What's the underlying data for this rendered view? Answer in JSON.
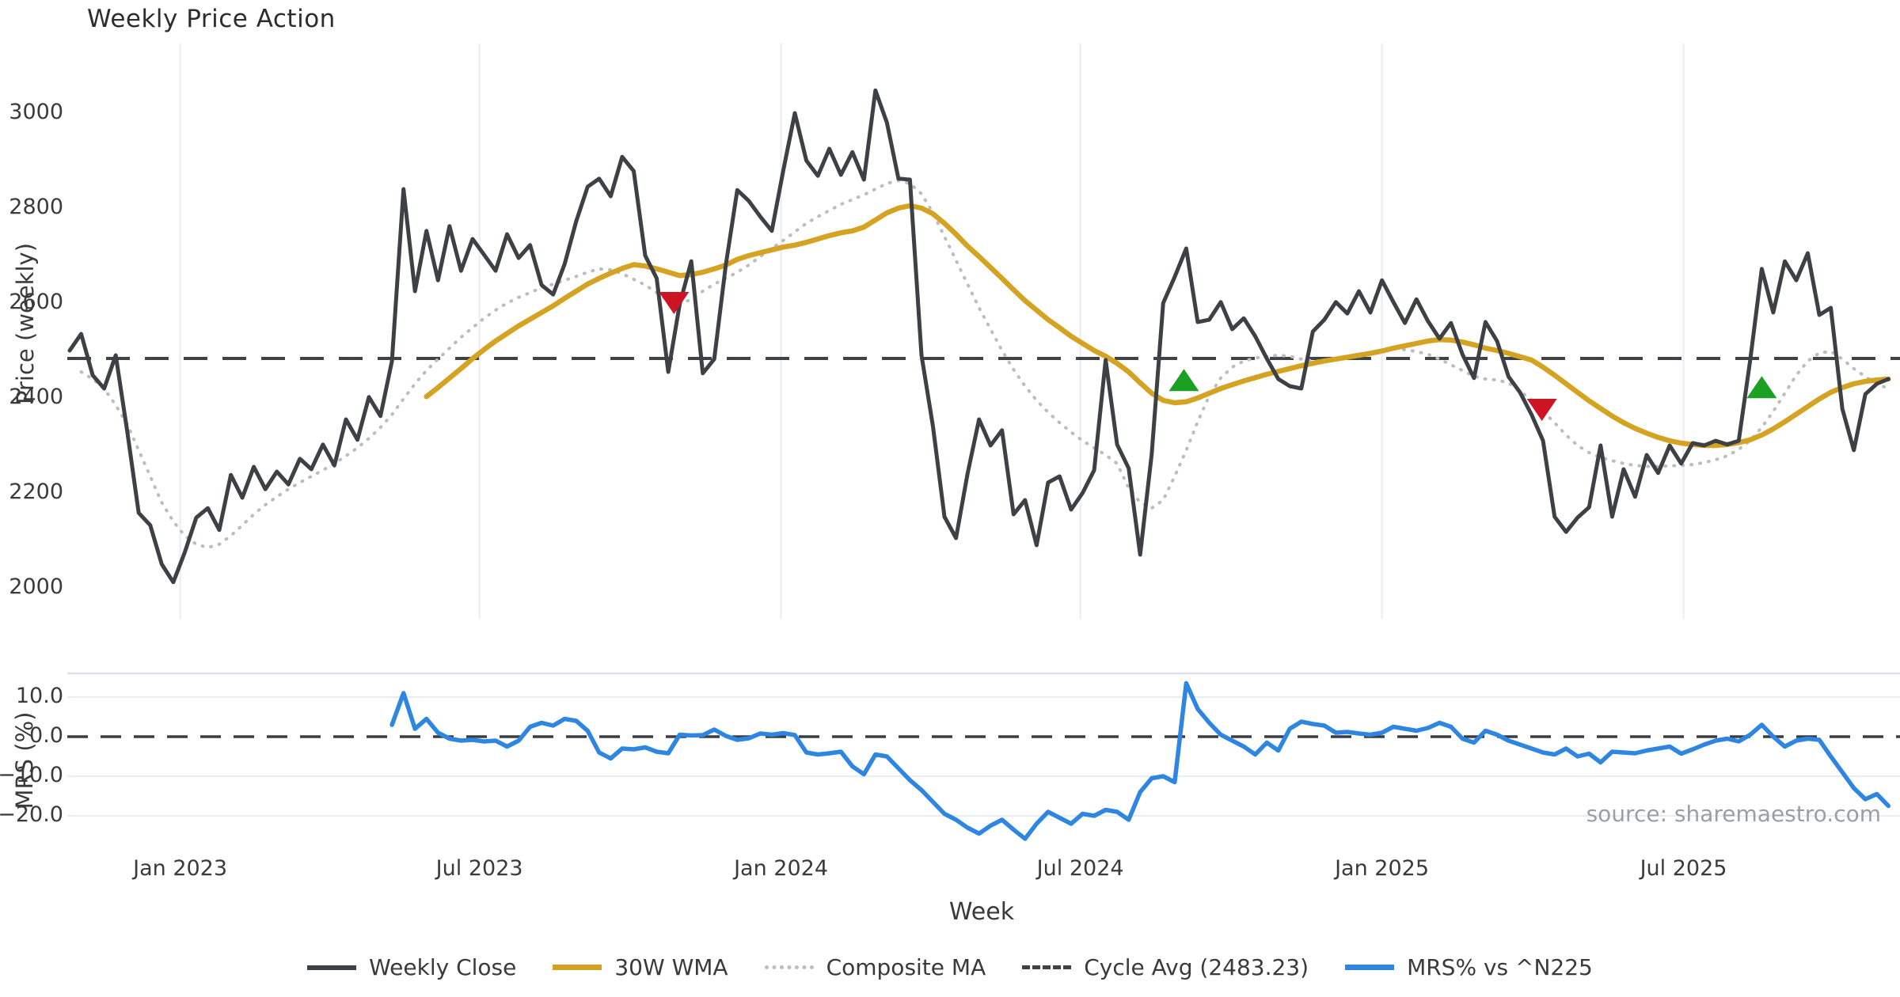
{
  "chart_data": {
    "type": "line",
    "title": "Weekly Price Action",
    "xlabel": "Week",
    "source": "source: sharemaestro.com",
    "grid": "vertical-on-price-panel, horizontal-on-mrs-panel",
    "legend_position": "bottom-center",
    "colors": {
      "close": "#3d4045",
      "wma": "#d4a321",
      "composite": "#bdbdbd",
      "cycle": "#3f4246",
      "mrs": "#2e86e0",
      "buy_marker": "#1ca024",
      "sell_marker": "#cd1425",
      "gridline": "#e9ecf2",
      "panel_spine": "#dde1e8",
      "source_text": "#9b9fa5"
    },
    "legend": [
      {
        "key": "close",
        "label": "Weekly Close"
      },
      {
        "key": "wma",
        "label": "30W WMA"
      },
      {
        "key": "composite",
        "label": "Composite MA"
      },
      {
        "key": "cycle",
        "label": "Cycle Avg (2483.23)"
      },
      {
        "key": "mrs",
        "label": "MRS% vs ^N225"
      }
    ],
    "x_ticks": [
      {
        "label": "Jan 2023",
        "week": 9.6
      },
      {
        "label": "Jul 2023",
        "week": 35.6
      },
      {
        "label": "Jan 2024",
        "week": 61.8
      },
      {
        "label": "Jul 2024",
        "week": 87.8
      },
      {
        "label": "Jan 2025",
        "week": 114.0
      },
      {
        "label": "Jul 2025",
        "week": 140.2
      }
    ],
    "price_panel": {
      "ylabel": "Price (weekly)",
      "yticks": [
        3000,
        2800,
        2600,
        2400,
        2200,
        2000
      ],
      "ylim": [
        1960,
        3140
      ],
      "cycle_avg": 2483.23,
      "series": {
        "close": [
          2500,
          2535,
          2448,
          2420,
          2490,
          2330,
          2158,
          2132,
          2050,
          2012,
          2075,
          2148,
          2168,
          2122,
          2238,
          2190,
          2255,
          2208,
          2245,
          2218,
          2272,
          2250,
          2302,
          2258,
          2355,
          2312,
          2402,
          2362,
          2478,
          2840,
          2625,
          2752,
          2648,
          2762,
          2668,
          2735,
          2702,
          2668,
          2745,
          2695,
          2722,
          2638,
          2618,
          2682,
          2772,
          2845,
          2862,
          2825,
          2908,
          2878,
          2700,
          2652,
          2455,
          2598,
          2688,
          2452,
          2482,
          2680,
          2838,
          2815,
          2782,
          2752,
          2880,
          3000,
          2900,
          2868,
          2925,
          2870,
          2918,
          2860,
          3048,
          2980,
          2862,
          2860,
          2490,
          2340,
          2150,
          2105,
          2240,
          2355,
          2300,
          2332,
          2155,
          2185,
          2090,
          2222,
          2235,
          2165,
          2200,
          2248,
          2480,
          2302,
          2252,
          2070,
          2282,
          2600,
          2655,
          2715,
          2560,
          2565,
          2602,
          2545,
          2568,
          2530,
          2483,
          2440,
          2425,
          2420,
          2540,
          2565,
          2602,
          2578,
          2625,
          2580,
          2648,
          2602,
          2558,
          2608,
          2562,
          2525,
          2558,
          2492,
          2442,
          2560,
          2520,
          2445,
          2412,
          2365,
          2310,
          2150,
          2118,
          2148,
          2170,
          2300,
          2150,
          2250,
          2192,
          2280,
          2242,
          2300,
          2262,
          2305,
          2300,
          2310,
          2302,
          2310,
          2480,
          2672,
          2580,
          2688,
          2648,
          2705,
          2575,
          2590,
          2377,
          2290,
          2408,
          2430,
          2440
        ],
        "wma": [
          null,
          null,
          null,
          null,
          null,
          null,
          null,
          null,
          null,
          null,
          null,
          null,
          null,
          null,
          null,
          null,
          null,
          null,
          null,
          null,
          null,
          null,
          null,
          null,
          null,
          null,
          null,
          null,
          null,
          null,
          null,
          2403,
          2422,
          2442,
          2462,
          2483,
          2502,
          2520,
          2536,
          2552,
          2566,
          2580,
          2594,
          2610,
          2625,
          2640,
          2652,
          2663,
          2673,
          2681,
          2678,
          2672,
          2665,
          2658,
          2660,
          2665,
          2672,
          2680,
          2692,
          2700,
          2706,
          2712,
          2718,
          2722,
          2728,
          2735,
          2742,
          2748,
          2752,
          2760,
          2775,
          2790,
          2800,
          2805,
          2800,
          2788,
          2768,
          2745,
          2720,
          2698,
          2675,
          2652,
          2628,
          2605,
          2585,
          2565,
          2548,
          2530,
          2515,
          2500,
          2488,
          2473,
          2455,
          2432,
          2410,
          2395,
          2390,
          2392,
          2400,
          2410,
          2420,
          2428,
          2436,
          2443,
          2450,
          2456,
          2462,
          2468,
          2473,
          2478,
          2482,
          2486,
          2490,
          2494,
          2499,
          2505,
          2510,
          2515,
          2520,
          2523,
          2522,
          2518,
          2512,
          2505,
          2500,
          2494,
          2487,
          2480,
          2465,
          2448,
          2430,
          2412,
          2394,
          2378,
          2362,
          2348,
          2336,
          2326,
          2317,
          2310,
          2305,
          2302,
          2300,
          2300,
          2302,
          2306,
          2312,
          2322,
          2335,
          2350,
          2366,
          2382,
          2398,
          2412,
          2422,
          2430,
          2435,
          2438,
          2440
        ],
        "composite": [
          null,
          2455,
          2440,
          2420,
          2385,
          2345,
          2290,
          2235,
          2180,
          2140,
          2110,
          2092,
          2085,
          2092,
          2110,
          2132,
          2155,
          2175,
          2192,
          2208,
          2222,
          2235,
          2248,
          2262,
          2278,
          2295,
          2315,
          2338,
          2365,
          2398,
          2430,
          2458,
          2482,
          2505,
          2528,
          2548,
          2568,
          2585,
          2600,
          2612,
          2622,
          2632,
          2640,
          2648,
          2656,
          2665,
          2672,
          2670,
          2662,
          2650,
          2638,
          2622,
          2605,
          2598,
          2608,
          2625,
          2640,
          2652,
          2665,
          2680,
          2698,
          2715,
          2732,
          2750,
          2768,
          2782,
          2795,
          2808,
          2818,
          2828,
          2840,
          2852,
          2858,
          2852,
          2830,
          2790,
          2740,
          2690,
          2640,
          2590,
          2545,
          2500,
          2460,
          2425,
          2395,
          2370,
          2348,
          2328,
          2310,
          2295,
          2280,
          2262,
          2210,
          2180,
          2168,
          2185,
          2235,
          2290,
          2350,
          2405,
          2442,
          2465,
          2478,
          2484,
          2488,
          2490,
          2488,
          2482,
          2478,
          2478,
          2482,
          2487,
          2492,
          2496,
          2500,
          2504,
          2502,
          2498,
          2492,
          2482,
          2470,
          2458,
          2446,
          2440,
          2438,
          2432,
          2415,
          2395,
          2372,
          2348,
          2322,
          2300,
          2285,
          2275,
          2268,
          2262,
          2258,
          2256,
          2256,
          2257,
          2258,
          2260,
          2264,
          2270,
          2278,
          2292,
          2310,
          2338,
          2372,
          2410,
          2448,
          2478,
          2495,
          2498,
          2482,
          2462,
          2445,
          2430,
          2420
        ]
      },
      "markers": [
        {
          "signal": "sell",
          "week": 52.5,
          "price": 2600
        },
        {
          "signal": "buy",
          "week": 96.8,
          "price": 2438
        },
        {
          "signal": "sell",
          "week": 127.9,
          "price": 2375
        },
        {
          "signal": "buy",
          "week": 147.0,
          "price": 2423
        }
      ]
    },
    "mrs_panel": {
      "ylabel": "MRS (%)",
      "ytick_labels": [
        "10.0",
        "0.0",
        "−10.0",
        "−20.0"
      ],
      "yticks": [
        10,
        0,
        -10,
        -20
      ],
      "ylim": [
        -28,
        16
      ],
      "zero_line": 0,
      "values": [
        null,
        null,
        null,
        null,
        null,
        null,
        null,
        null,
        null,
        null,
        null,
        null,
        null,
        null,
        null,
        null,
        null,
        null,
        null,
        null,
        null,
        null,
        null,
        null,
        null,
        null,
        null,
        null,
        3,
        11,
        2,
        4.5,
        1,
        -0.5,
        -1,
        -0.8,
        -1.2,
        -1,
        -2.5,
        -1,
        2.5,
        3.5,
        2.8,
        4.5,
        4,
        1.5,
        -4,
        -5.5,
        -3,
        -3.2,
        -2.7,
        -3.8,
        -4.2,
        0.5,
        0.3,
        0.4,
        1.8,
        0.2,
        -0.8,
        -0.4,
        0.8,
        0.5,
        0.9,
        0.4,
        -4,
        -4.5,
        -4.2,
        -3.8,
        -7.5,
        -9.5,
        -4.5,
        -5,
        -8,
        -11,
        -13.5,
        -16.5,
        -19.5,
        -21,
        -23,
        -24.5,
        -22.5,
        -21,
        -23.5,
        -25.8,
        -22,
        -19,
        -20.5,
        -22,
        -19.5,
        -20,
        -18.5,
        -19,
        -21,
        -14,
        -10.5,
        -10,
        -11.5,
        13.5,
        7,
        3.5,
        0.5,
        -1,
        -2.5,
        -4.5,
        -1.5,
        -3.5,
        2,
        3.8,
        3.2,
        2.8,
        1,
        1.2,
        0.8,
        0.5,
        1,
        2.5,
        2,
        1.5,
        2.2,
        3.5,
        2.5,
        -0.5,
        -1.5,
        1.5,
        0.5,
        -1,
        -2,
        -3,
        -4,
        -4.5,
        -3,
        -5,
        -4.3,
        -6.5,
        -3.8,
        -4,
        -4.2,
        -3.5,
        -3,
        -2.5,
        -4.3,
        -3.2,
        -2,
        -1,
        -0.5,
        -1.2,
        0.5,
        3,
        0,
        -2.5,
        -1,
        -0.5,
        -0.8,
        -5,
        -9,
        -13,
        -15.8,
        -14.5,
        -17.5
      ]
    }
  }
}
